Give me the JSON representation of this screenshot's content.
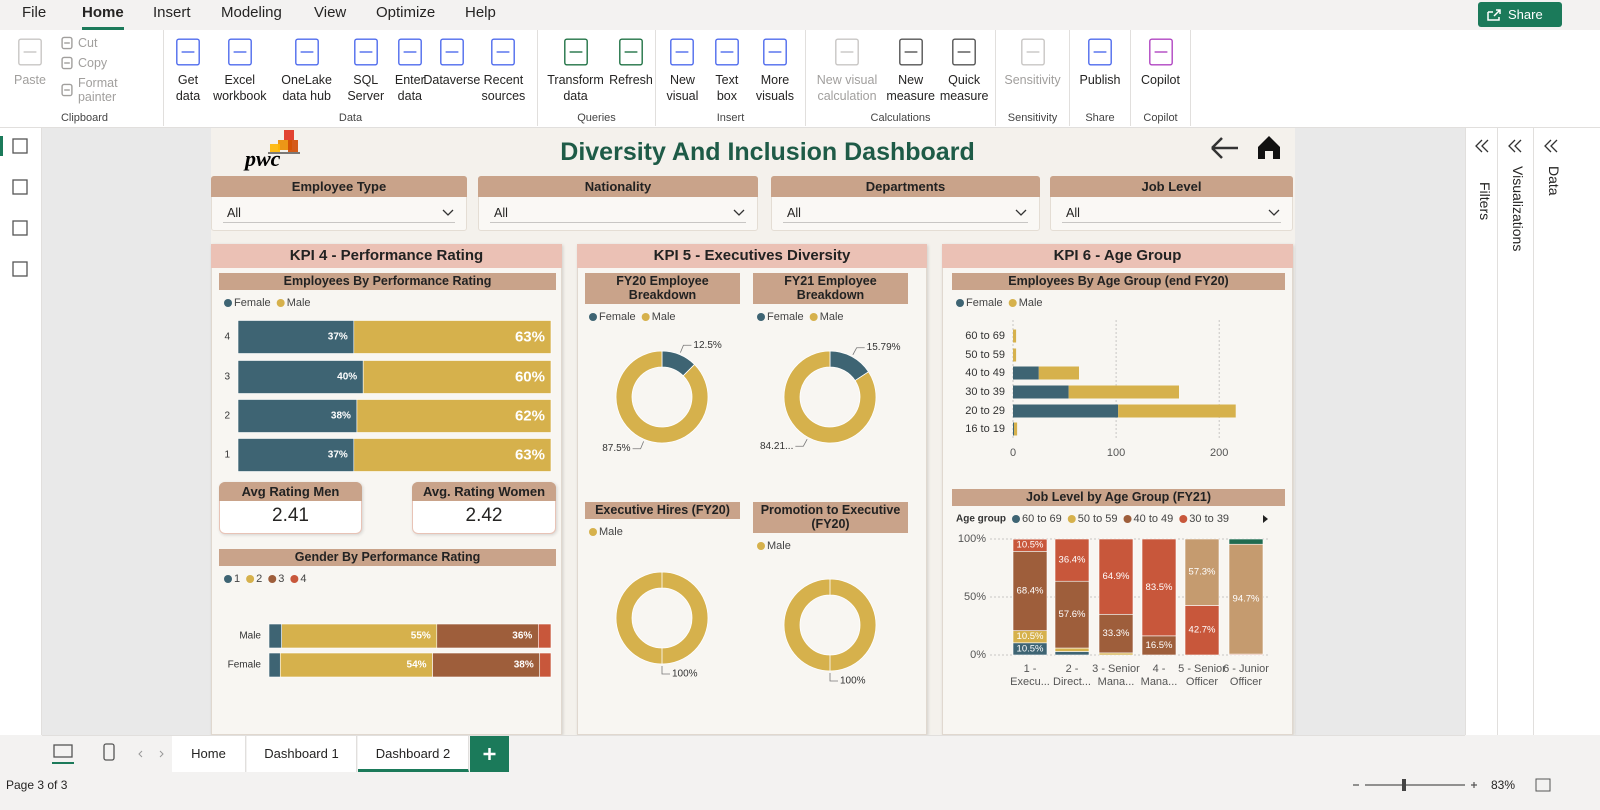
{
  "ribbon": {
    "tabs": [
      "File",
      "Home",
      "Insert",
      "Modeling",
      "View",
      "Optimize",
      "Help"
    ],
    "share": "Share",
    "groups": [
      {
        "label": "Clipboard",
        "items": [
          "Paste",
          "Cut",
          "Copy",
          "Format painter"
        ]
      },
      {
        "label": "Data",
        "items": [
          "Get data",
          "Excel workbook",
          "OneLake data hub",
          "SQL Server",
          "Enter data",
          "Dataverse",
          "Recent sources"
        ]
      },
      {
        "label": "Queries",
        "items": [
          "Transform data",
          "Refresh"
        ]
      },
      {
        "label": "Insert",
        "items": [
          "New visual",
          "Text box",
          "More visuals"
        ]
      },
      {
        "label": "Calculations",
        "items": [
          "New visual calculation",
          "New measure",
          "Quick measure"
        ]
      },
      {
        "label": "Sensitivity",
        "items": [
          "Sensitivity"
        ]
      },
      {
        "label": "Share",
        "items": [
          "Publish"
        ]
      },
      {
        "label": "Copilot",
        "items": [
          "Copilot"
        ]
      }
    ]
  },
  "dashboard": {
    "logo": "pwc",
    "title": "Diversity And Inclusion Dashboard",
    "slicers": [
      {
        "label": "Employee Type",
        "value": "All"
      },
      {
        "label": "Nationality",
        "value": "All"
      },
      {
        "label": "Departments",
        "value": "All"
      },
      {
        "label": "Job Level",
        "value": "All"
      }
    ],
    "panels": [
      "KPI 4 - Performance Rating",
      "KPI 5 - Executives Diversity",
      "KPI 6 - Age Group"
    ],
    "cards": [
      {
        "label": "Avg Rating Men",
        "value": 2.41
      },
      {
        "label": "Avg. Rating Women",
        "value": 2.42
      }
    ]
  },
  "chart_data": [
    {
      "type": "bar",
      "orientation": "horizontal",
      "stacked": true,
      "title": "Employees By Performance Rating",
      "categories": [
        "4",
        "3",
        "2",
        "1"
      ],
      "xlim": [
        0,
        100
      ],
      "series": [
        {
          "name": "Female",
          "color": "#3e6473",
          "values": [
            37,
            40,
            38,
            37
          ],
          "value_labels": [
            "37%",
            "40%",
            "38%",
            "37%"
          ]
        },
        {
          "name": "Male",
          "color": "#d6b14c",
          "values": [
            63,
            60,
            62,
            63
          ],
          "value_labels": [
            "63%",
            "60%",
            "62%",
            "63%"
          ]
        }
      ]
    },
    {
      "type": "bar",
      "orientation": "horizontal",
      "stacked": true,
      "title": "Gender By Performance Rating",
      "categories": [
        "Male",
        "Female"
      ],
      "xlim": [
        0,
        100
      ],
      "series": [
        {
          "name": "1",
          "color": "#3e6473",
          "values": [
            4.5,
            4
          ]
        },
        {
          "name": "2",
          "color": "#d6b14c",
          "values": [
            55,
            54
          ],
          "value_labels": [
            "55%",
            "54%"
          ]
        },
        {
          "name": "3",
          "color": "#9e5e3b",
          "values": [
            36,
            38
          ],
          "value_labels": [
            "36%",
            "38%"
          ]
        },
        {
          "name": "4",
          "color": "#c8573b",
          "values": [
            4.5,
            4
          ]
        }
      ]
    },
    {
      "type": "donut",
      "title": "FY20 Employee Breakdown",
      "categories": [
        "Female",
        "Male"
      ],
      "values": [
        12.5,
        87.5
      ],
      "value_labels": [
        "12.5%",
        "87.5%"
      ],
      "colors": [
        "#3e6473",
        "#d6b14c"
      ]
    },
    {
      "type": "donut",
      "title": "FY21 Employee Breakdown",
      "categories": [
        "Female",
        "Male"
      ],
      "values": [
        15.79,
        84.21
      ],
      "value_labels": [
        "15.79%",
        "84.21..."
      ],
      "colors": [
        "#3e6473",
        "#d6b14c"
      ]
    },
    {
      "type": "donut",
      "title": "Executive Hires (FY20)",
      "categories": [
        "Male"
      ],
      "values": [
        100
      ],
      "value_labels": [
        "100%"
      ],
      "colors": [
        "#d6b14c"
      ]
    },
    {
      "type": "donut",
      "title": "Promotion to Executive (FY20)",
      "categories": [
        "Male"
      ],
      "values": [
        100
      ],
      "value_labels": [
        "100%"
      ],
      "colors": [
        "#d6b14c"
      ]
    },
    {
      "type": "bar",
      "orientation": "horizontal",
      "stacked": true,
      "title": "Employees By Age Group (end FY20)",
      "categories": [
        "60 to 69",
        "50 to 59",
        "40 to 49",
        "30 to 39",
        "20 to 29",
        "16 to 19"
      ],
      "xlim": [
        0,
        225
      ],
      "xticks": [
        0,
        100,
        200
      ],
      "grid": true,
      "series": [
        {
          "name": "Female",
          "color": "#3e6473",
          "values": [
            0,
            0,
            25,
            54,
            102,
            1
          ]
        },
        {
          "name": "Male",
          "color": "#d6b14c",
          "values": [
            3,
            3,
            39,
            107,
            114,
            3
          ]
        }
      ]
    },
    {
      "type": "column",
      "stacked": true,
      "title": "Job Level by Age Group (FY21)",
      "legend_title": "Age group",
      "categories": [
        "1 - Execu...",
        "2 - Direct...",
        "3 - Senior Mana...",
        "4 - Mana...",
        "5 - Senior Officer",
        "6 - Junior Officer"
      ],
      "ylim": [
        0,
        100
      ],
      "yticks": [
        {
          "value": 0,
          "label": "0%"
        },
        {
          "value": 50,
          "label": "50%"
        },
        {
          "value": 100,
          "label": "100%"
        }
      ],
      "grid": true,
      "series": [
        {
          "name": "60 to 69",
          "color": "#3e6473",
          "values": [
            10.5,
            3,
            0,
            0,
            0,
            0
          ],
          "value_labels": [
            "10.5%",
            null,
            null,
            null,
            null,
            null
          ]
        },
        {
          "name": "50 to 59",
          "color": "#d6b14c",
          "values": [
            10.5,
            3,
            1.8,
            0,
            0,
            0
          ],
          "value_labels": [
            "10.5%",
            null,
            null,
            null,
            null,
            null
          ]
        },
        {
          "name": "40 to 49",
          "color": "#9e5e3b",
          "values": [
            68.4,
            57.6,
            33.3,
            16.5,
            0,
            0
          ],
          "value_labels": [
            "68.4%",
            "57.6%",
            "33.3%",
            "16.5%",
            null,
            null
          ]
        },
        {
          "name": "30 to 39",
          "color": "#c8573b",
          "values": [
            10.5,
            36.4,
            64.9,
            83.5,
            42.7,
            0.8
          ],
          "value_labels": [
            "10.5%",
            "36.4%",
            "64.9%",
            "83.5%",
            "42.7%",
            null
          ]
        },
        {
          "color": "#c59b6f",
          "values": [
            0,
            0,
            0,
            0,
            57.3,
            94.7
          ],
          "value_labels": [
            null,
            null,
            null,
            null,
            "57.3%",
            "94.7%"
          ]
        },
        {
          "color": "#1f6b50",
          "values": [
            0,
            0,
            0,
            0,
            0,
            4.5
          ]
        }
      ]
    }
  ],
  "panes": [
    "Filters",
    "Visualizations",
    "Data"
  ],
  "page_tabs": [
    "Home",
    "Dashboard 1",
    "Dashboard 2"
  ],
  "status": {
    "page": "Page 3 of 3",
    "zoom": "83%"
  }
}
